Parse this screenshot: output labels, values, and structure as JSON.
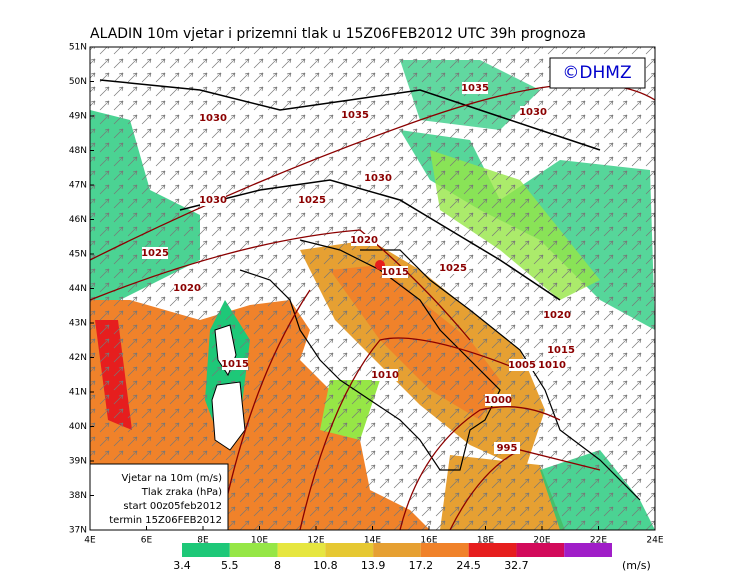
{
  "header": {
    "title": "ALADIN 10m vjetar i prizemni tlak u 15Z06FEB2012 UTC 39h prognoza",
    "copyright": "©DHMZ"
  },
  "map": {
    "lat_labels": [
      "51N",
      "50N",
      "49N",
      "48N",
      "47N",
      "46N",
      "45N",
      "44N",
      "43N",
      "42N",
      "41N",
      "40N",
      "39N",
      "38N",
      "37N"
    ],
    "lon_labels": [
      "4E",
      "6E",
      "8E",
      "10E",
      "12E",
      "14E",
      "16E",
      "18E",
      "20E",
      "22E",
      "24E"
    ],
    "isobars": [
      1035,
      1030,
      1035,
      1030,
      1030,
      1030,
      1025,
      1020,
      1015,
      1025,
      1025,
      1020,
      1020,
      1015,
      1010,
      1005,
      1015,
      1010,
      1000,
      995
    ]
  },
  "info_box": {
    "lines": [
      "Vjetar na 10m (m/s)",
      "Tlak zraka (hPa)",
      "start 00z05feb2012",
      "termin 15Z06FEB2012"
    ]
  },
  "legend": {
    "levels": [
      3.4,
      5.5,
      8,
      10.8,
      13.9,
      17.2,
      24.5,
      32.7
    ],
    "unit": "(m/s)",
    "colors": [
      "#1ec878",
      "#96e646",
      "#e6e640",
      "#e6c832",
      "#e6a032",
      "#f0822a",
      "#e61e1e",
      "#d20a5a",
      "#a01ec8"
    ]
  }
}
